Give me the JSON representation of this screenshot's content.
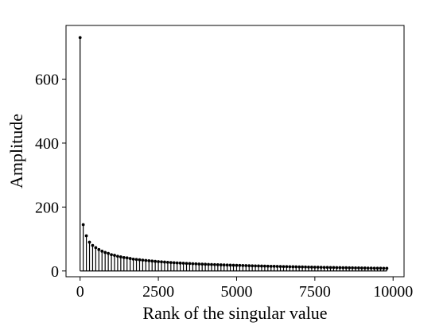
{
  "chart_data": {
    "type": "stem",
    "xlabel": "Rank of the singular value",
    "ylabel": "Amplitude",
    "xlim": [
      -450,
      10350
    ],
    "ylim": [
      -18,
      768
    ],
    "xticks": [
      0,
      2500,
      5000,
      7500,
      10000
    ],
    "xtick_labels": [
      "0",
      "2500",
      "5000",
      "7500",
      "10000"
    ],
    "yticks": [
      0,
      200,
      400,
      600
    ],
    "ytick_labels": [
      "0",
      "200",
      "400",
      "600"
    ],
    "grid": false,
    "legend": "none",
    "color": "#000000",
    "x_step": 100,
    "values": [
      730,
      145,
      110,
      90,
      80,
      73,
      67,
      62,
      58,
      55,
      51,
      49,
      46,
      44,
      42,
      41,
      39,
      37,
      36,
      35,
      34,
      33,
      32,
      31,
      30,
      29.3,
      28.5,
      27.8,
      27.1,
      26.5,
      25.9,
      25.3,
      24.7,
      24.2,
      23.7,
      23.2,
      22.7,
      22.3,
      21.8,
      21.4,
      21.0,
      20.6,
      20.2,
      19.8,
      19.5,
      19.1,
      18.8,
      18.5,
      18.2,
      17.9,
      17.6,
      17.3,
      17.0,
      16.7,
      16.4,
      16.2,
      15.9,
      15.7,
      15.4,
      15.2,
      14.9,
      14.7,
      14.5,
      14.3,
      14.0,
      13.8,
      13.6,
      13.4,
      13.2,
      13.0,
      12.8,
      12.6,
      12.4,
      12.2,
      12.0,
      11.8,
      11.7,
      11.5,
      11.3,
      11.1,
      11.0,
      10.8,
      10.6,
      10.5,
      10.3,
      10.2,
      10.0,
      9.9,
      9.7,
      9.6,
      9.4,
      9.3,
      9.1,
      9.0,
      8.8,
      8.7,
      8.6,
      8.4,
      8.3
    ]
  }
}
